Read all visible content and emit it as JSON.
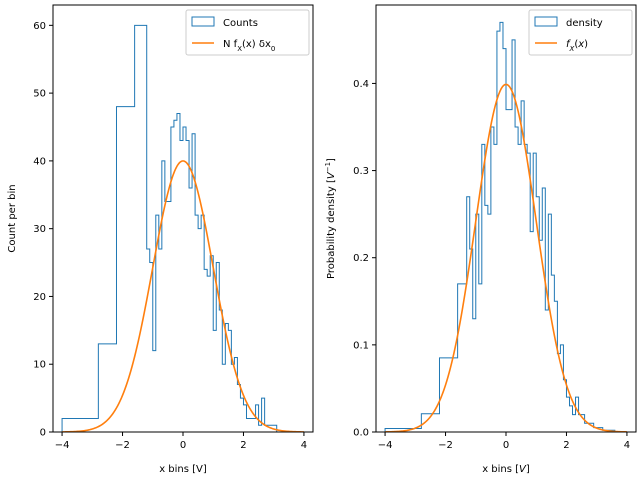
{
  "chart_data": [
    {
      "type": "histogram",
      "xlabel": "x bins [V]",
      "ylabel": "Count per bin",
      "xlim": [
        -4.3,
        4.3
      ],
      "ylim": [
        0,
        63
      ],
      "xticks": [
        -4,
        -2,
        0,
        2,
        4
      ],
      "yticks": [
        0,
        10,
        20,
        30,
        40,
        50,
        60
      ],
      "xtick_labels": [
        "−4",
        "−2",
        "0",
        "2",
        "4"
      ],
      "ytick_labels": [
        "0",
        "10",
        "20",
        "30",
        "40",
        "50",
        "60"
      ],
      "legend": {
        "position": "upper right",
        "entries": [
          {
            "label": "Counts",
            "kind": "patch",
            "color": "#1f77b4"
          },
          {
            "label_html": "N f<tspan baseline-shift=\"sub\" font-size=\"7\">X</tspan>(x) δx<tspan baseline-shift=\"sub\" font-size=\"7\">0</tspan>",
            "label": "N f_X(x) δx_0",
            "kind": "line",
            "color": "#ff7f0e"
          }
        ]
      },
      "series": [
        {
          "name": "Counts",
          "kind": "step",
          "color": "#1f77b4",
          "edges": [
            -4.0,
            -2.8,
            -2.2,
            -1.6,
            -1.2,
            -1.1,
            -1.0,
            -0.9,
            -0.8,
            -0.7,
            -0.6,
            -0.5,
            -0.4,
            -0.3,
            -0.2,
            -0.1,
            0.0,
            0.1,
            0.2,
            0.3,
            0.4,
            0.5,
            0.6,
            0.7,
            0.8,
            0.9,
            1.0,
            1.1,
            1.2,
            1.3,
            1.4,
            1.5,
            1.6,
            1.7,
            1.8,
            1.9,
            2.0,
            2.1,
            2.2,
            2.3,
            2.4,
            2.5,
            2.6,
            2.7,
            2.8,
            2.9,
            3.0,
            3.1,
            3.2,
            3.3,
            3.4,
            3.6
          ],
          "values": [
            2,
            13,
            48,
            60,
            27,
            25,
            12,
            32,
            27,
            40,
            34,
            34,
            45,
            46,
            47,
            43,
            45,
            43,
            36,
            44,
            32,
            30,
            32,
            24,
            23,
            26,
            15,
            25,
            18,
            10,
            16,
            15,
            10,
            11,
            7,
            5,
            4,
            2,
            2,
            2,
            4,
            1,
            5,
            1,
            1,
            1,
            1,
            0,
            0,
            0,
            0
          ]
        },
        {
          "name": "N f_X(x) δx_0",
          "kind": "gaussian",
          "color": "#ff7f0e",
          "peak": 40,
          "mean": 0,
          "sigma": 1,
          "x_range": [
            -4,
            4
          ]
        }
      ]
    },
    {
      "type": "histogram",
      "xlabel_html": "x bins [<tspan font-style=\"italic\">V</tspan>]",
      "xlabel": "x bins [V]",
      "ylabel_html": "Probability density [<tspan font-style=\"italic\">V</tspan><tspan baseline-shift=\"super\" font-size=\"7\">−1</tspan>]",
      "ylabel": "Probability density [V^−1]",
      "xlim": [
        -4.3,
        4.3
      ],
      "ylim": [
        0,
        0.49
      ],
      "xticks": [
        -4,
        -2,
        0,
        2,
        4
      ],
      "yticks": [
        0.0,
        0.1,
        0.2,
        0.3,
        0.4
      ],
      "xtick_labels": [
        "−4",
        "−2",
        "0",
        "2",
        "4"
      ],
      "ytick_labels": [
        "0.0",
        "0.1",
        "0.2",
        "0.3",
        "0.4"
      ],
      "legend": {
        "position": "upper right",
        "entries": [
          {
            "label": "density",
            "kind": "patch",
            "color": "#1f77b4"
          },
          {
            "label_html": "<tspan font-style=\"italic\">f</tspan><tspan baseline-shift=\"sub\" font-size=\"7\" font-style=\"italic\">X</tspan>(<tspan font-style=\"italic\">x</tspan>)",
            "label": "f_X(x)",
            "kind": "line",
            "color": "#ff7f0e"
          }
        ]
      },
      "series": [
        {
          "name": "density",
          "kind": "step",
          "color": "#1f77b4",
          "edges": [
            -4.0,
            -2.8,
            -2.2,
            -1.6,
            -1.3,
            -1.2,
            -1.1,
            -1.0,
            -0.9,
            -0.8,
            -0.7,
            -0.6,
            -0.5,
            -0.4,
            -0.3,
            -0.2,
            -0.1,
            0.0,
            0.1,
            0.2,
            0.3,
            0.4,
            0.5,
            0.6,
            0.7,
            0.8,
            0.9,
            1.0,
            1.1,
            1.2,
            1.3,
            1.4,
            1.5,
            1.6,
            1.7,
            1.8,
            1.9,
            2.0,
            2.1,
            2.2,
            2.3,
            2.4,
            2.5,
            2.6,
            2.7,
            2.8,
            2.9,
            3.0,
            3.1,
            3.2,
            3.3,
            3.6
          ],
          "values": [
            0.004,
            0.021,
            0.085,
            0.17,
            0.27,
            0.21,
            0.13,
            0.25,
            0.17,
            0.33,
            0.26,
            0.25,
            0.35,
            0.33,
            0.46,
            0.47,
            0.44,
            0.37,
            0.37,
            0.45,
            0.35,
            0.33,
            0.38,
            0.33,
            0.32,
            0.23,
            0.32,
            0.27,
            0.22,
            0.28,
            0.14,
            0.25,
            0.18,
            0.15,
            0.09,
            0.1,
            0.06,
            0.04,
            0.03,
            0.02,
            0.04,
            0.02,
            0.02,
            0.01,
            0.01,
            0.01,
            0.005,
            0.005,
            0.005,
            0.002,
            0.002
          ]
        },
        {
          "name": "f_X(x)",
          "kind": "gaussian",
          "color": "#ff7f0e",
          "peak": 0.3989,
          "mean": 0,
          "sigma": 1,
          "x_range": [
            -4,
            4
          ]
        }
      ]
    }
  ]
}
